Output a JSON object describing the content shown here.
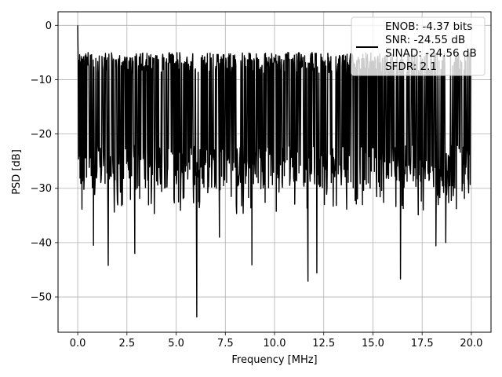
{
  "chart_data": {
    "type": "line",
    "title": "",
    "xlabel": "Frequency [MHz]",
    "ylabel": "PSD [dB]",
    "xlim": [
      -1.0,
      21.0
    ],
    "ylim": [
      -56.5,
      2.5
    ],
    "xticks": [
      0.0,
      2.5,
      5.0,
      7.5,
      10.0,
      12.5,
      15.0,
      17.5,
      20.0
    ],
    "xtick_labels": [
      "0.0",
      "2.5",
      "5.0",
      "7.5",
      "10.0",
      "12.5",
      "15.0",
      "17.5",
      "20.0"
    ],
    "yticks": [
      0,
      -10,
      -20,
      -30,
      -40,
      -50
    ],
    "ytick_labels": [
      "0",
      "−10",
      "−20",
      "−30",
      "−40",
      "−50"
    ],
    "grid": true,
    "legend_position": "top-right",
    "series_color": "#000000",
    "legend": {
      "lines": [
        "ENOB: -4.37 bits",
        "SNR: -24.55 dB",
        "SINAD: -24.56 dB",
        "SFDR: 2.1"
      ]
    },
    "series": [
      {
        "x_range": [
          0.0,
          20.0
        ],
        "points": 1024,
        "peak": {
          "x": 0.0,
          "y": 0.0
        },
        "typical_band": [
          -26,
          -7
        ],
        "notable_dips": [
          {
            "x": 0.8,
            "y": -40.5
          },
          {
            "x": 1.55,
            "y": -44.2
          },
          {
            "x": 2.9,
            "y": -42.0
          },
          {
            "x": 6.05,
            "y": -53.7
          },
          {
            "x": 7.2,
            "y": -39.0
          },
          {
            "x": 8.85,
            "y": -44.1
          },
          {
            "x": 11.7,
            "y": -47.1
          },
          {
            "x": 12.15,
            "y": -45.6
          },
          {
            "x": 16.4,
            "y": -46.7
          },
          {
            "x": 18.2,
            "y": -40.6
          },
          {
            "x": 18.7,
            "y": -40.0
          }
        ]
      }
    ]
  }
}
